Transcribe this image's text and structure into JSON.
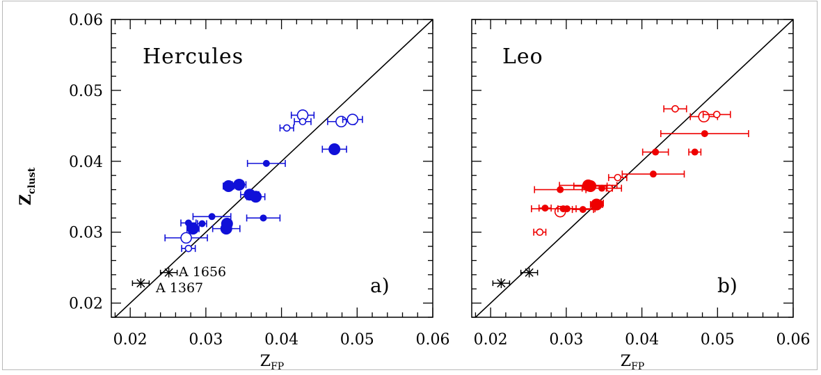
{
  "figure": {
    "ylabel_main": "Z",
    "ylabel_sub": "clust",
    "xlabel_main": "Z",
    "xlabel_sub": "FP",
    "y_ticks": [
      "0.02",
      "0.03",
      "0.04",
      "0.05",
      "0.06"
    ],
    "x_ticks_left": [
      "0.02",
      "0.03",
      "0.04",
      "0.05",
      "0.06"
    ],
    "x_ticks_right": [
      "0.02",
      "0.03",
      "0.04",
      "0.05",
      "0.06"
    ]
  },
  "colors": {
    "hercules": "#1010d8",
    "leo": "#ee0000",
    "reference": "#000000"
  },
  "chart_data": [
    {
      "type": "scatter",
      "title": "Hercules",
      "panel_label": "a)",
      "xlim": [
        0.0175,
        0.06
      ],
      "ylim": [
        0.018,
        0.06
      ],
      "reference_line": "y = x",
      "points_filled": [
        {
          "x": 0.0283,
          "y": 0.0305,
          "xerr": 0.0008,
          "big": true
        },
        {
          "x": 0.0277,
          "y": 0.0313,
          "xerr": 0.001,
          "big": false
        },
        {
          "x": 0.0295,
          "y": 0.0312,
          "xerr": 0.0006,
          "big": false
        },
        {
          "x": 0.0308,
          "y": 0.0322,
          "xerr": 0.0025,
          "big": false
        },
        {
          "x": 0.0327,
          "y": 0.0305,
          "xerr": 0.0018,
          "big": true
        },
        {
          "x": 0.0328,
          "y": 0.0312,
          "xerr": 0.0005,
          "big": true
        },
        {
          "x": 0.033,
          "y": 0.0365,
          "xerr": 0.0007,
          "big": true
        },
        {
          "x": 0.0344,
          "y": 0.0367,
          "xerr": 0.0009,
          "big": true
        },
        {
          "x": 0.0358,
          "y": 0.0353,
          "xerr": 0.0012,
          "big": true
        },
        {
          "x": 0.0366,
          "y": 0.035,
          "xerr": 0.0012,
          "big": true
        },
        {
          "x": 0.0376,
          "y": 0.032,
          "xerr": 0.0022,
          "big": false
        },
        {
          "x": 0.038,
          "y": 0.0397,
          "xerr": 0.0025,
          "big": false
        },
        {
          "x": 0.047,
          "y": 0.0417,
          "xerr": 0.0016,
          "big": true
        }
      ],
      "points_open": [
        {
          "x": 0.0274,
          "y": 0.0292,
          "xerr": 0.0028,
          "big": true
        },
        {
          "x": 0.0277,
          "y": 0.0277,
          "xerr": 0.0009,
          "big": false
        },
        {
          "x": 0.0407,
          "y": 0.0447,
          "xerr": 0.0009,
          "big": false
        },
        {
          "x": 0.0428,
          "y": 0.0465,
          "xerr": 0.0015,
          "big": true
        },
        {
          "x": 0.0428,
          "y": 0.0456,
          "xerr": 0.0011,
          "big": false
        },
        {
          "x": 0.0479,
          "y": 0.0456,
          "xerr": 0.0018,
          "big": true
        },
        {
          "x": 0.0494,
          "y": 0.0459,
          "xerr": 0.0013,
          "big": true
        }
      ],
      "reference_clusters": [
        {
          "name": "A 1656",
          "x": 0.0251,
          "y": 0.0243
        },
        {
          "name": "A 1367",
          "x": 0.0214,
          "y": 0.0228
        }
      ]
    },
    {
      "type": "scatter",
      "title": "Leo",
      "panel_label": "b)",
      "xlim": [
        0.0175,
        0.06
      ],
      "ylim": [
        0.018,
        0.06
      ],
      "reference_line": "y = x",
      "points_filled": [
        {
          "x": 0.0272,
          "y": 0.0334,
          "xerr": 0.0008,
          "big": false
        },
        {
          "x": 0.0292,
          "y": 0.036,
          "xerr": 0.0034,
          "big": false
        },
        {
          "x": 0.0296,
          "y": 0.0333,
          "xerr": 0.0042,
          "big": false
        },
        {
          "x": 0.0301,
          "y": 0.0333,
          "xerr": 0.0012,
          "big": false
        },
        {
          "x": 0.0322,
          "y": 0.0332,
          "xerr": 0.0014,
          "big": false
        },
        {
          "x": 0.0329,
          "y": 0.0366,
          "xerr": 0.0038,
          "big": true
        },
        {
          "x": 0.0332,
          "y": 0.0365,
          "xerr": 0.0022,
          "big": true
        },
        {
          "x": 0.034,
          "y": 0.0339,
          "xerr": 0.0008,
          "big": true
        },
        {
          "x": 0.0344,
          "y": 0.0341,
          "xerr": 0.0005,
          "big": false
        },
        {
          "x": 0.0347,
          "y": 0.0362,
          "xerr": 0.0026,
          "big": false
        },
        {
          "x": 0.0415,
          "y": 0.0382,
          "xerr": 0.0041,
          "big": false
        },
        {
          "x": 0.0418,
          "y": 0.0413,
          "xerr": 0.0017,
          "big": false
        },
        {
          "x": 0.047,
          "y": 0.0413,
          "xerr": 0.0008,
          "big": false
        },
        {
          "x": 0.0483,
          "y": 0.0439,
          "xerr": 0.0058,
          "big": false
        }
      ],
      "points_open": [
        {
          "x": 0.0265,
          "y": 0.03,
          "xerr": 0.0008,
          "big": false
        },
        {
          "x": 0.0292,
          "y": 0.0329,
          "xerr": 0.0004,
          "big": true
        },
        {
          "x": 0.0357,
          "y": 0.0362,
          "xerr": 0.0004,
          "big": false
        },
        {
          "x": 0.0368,
          "y": 0.0377,
          "xerr": 0.0012,
          "big": false
        },
        {
          "x": 0.0444,
          "y": 0.0474,
          "xerr": 0.0015,
          "big": false
        },
        {
          "x": 0.0482,
          "y": 0.0463,
          "xerr": 0.0018,
          "big": true
        },
        {
          "x": 0.0499,
          "y": 0.0466,
          "xerr": 0.0018,
          "big": false
        }
      ],
      "reference_clusters": [
        {
          "name": "",
          "x": 0.0251,
          "y": 0.0243
        },
        {
          "name": "",
          "x": 0.0214,
          "y": 0.0228
        }
      ]
    }
  ]
}
